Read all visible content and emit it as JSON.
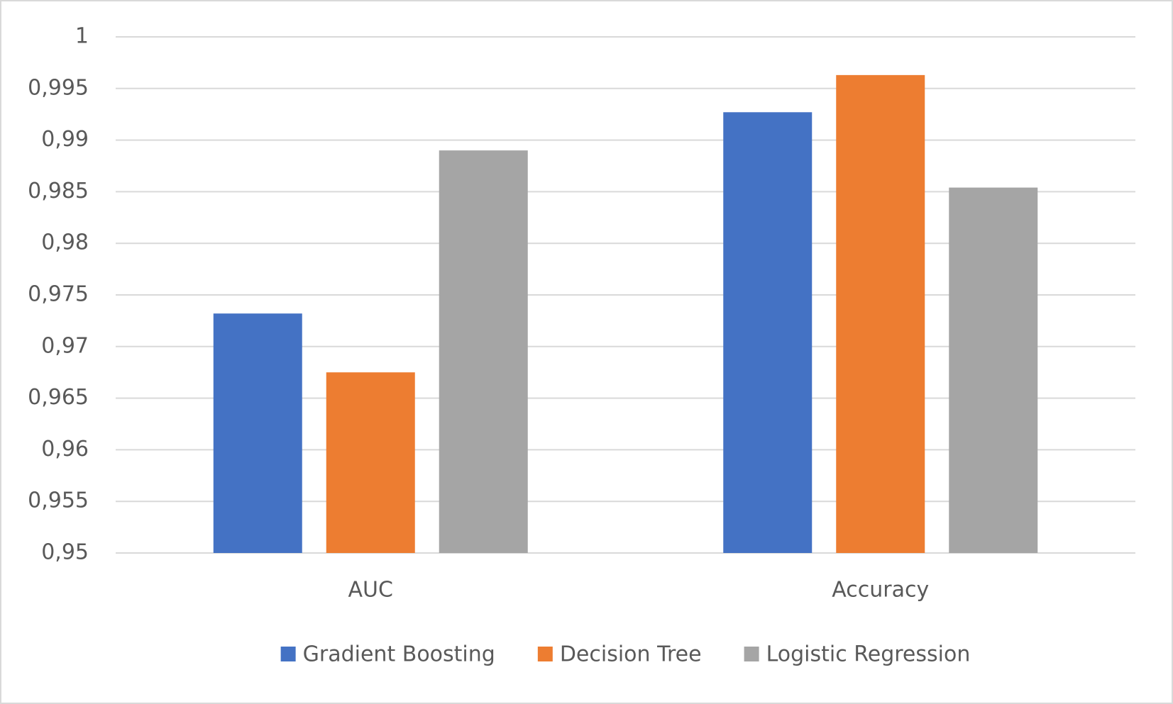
{
  "chart_data": {
    "type": "bar",
    "categories": [
      "AUC",
      "Accuracy"
    ],
    "series": [
      {
        "name": "Gradient Boosting",
        "color": "#4472c4",
        "values": [
          0.9732,
          0.9927
        ]
      },
      {
        "name": "Decision Tree",
        "color": "#ed7d31",
        "values": [
          0.9675,
          0.9963
        ]
      },
      {
        "name": "Logistic Regression",
        "color": "#a5a5a5",
        "values": [
          0.989,
          0.9854
        ]
      }
    ],
    "ylim": [
      0.95,
      1
    ],
    "yticks": [
      {
        "value": 0.95,
        "label": "0,95"
      },
      {
        "value": 0.955,
        "label": "0,955"
      },
      {
        "value": 0.96,
        "label": "0,96"
      },
      {
        "value": 0.965,
        "label": "0,965"
      },
      {
        "value": 0.97,
        "label": "0,97"
      },
      {
        "value": 0.975,
        "label": "0,975"
      },
      {
        "value": 0.98,
        "label": "0,98"
      },
      {
        "value": 0.985,
        "label": "0,985"
      },
      {
        "value": 0.99,
        "label": "0,99"
      },
      {
        "value": 0.995,
        "label": "0,995"
      },
      1
    ],
    "grid": true,
    "legend": "bottom"
  }
}
